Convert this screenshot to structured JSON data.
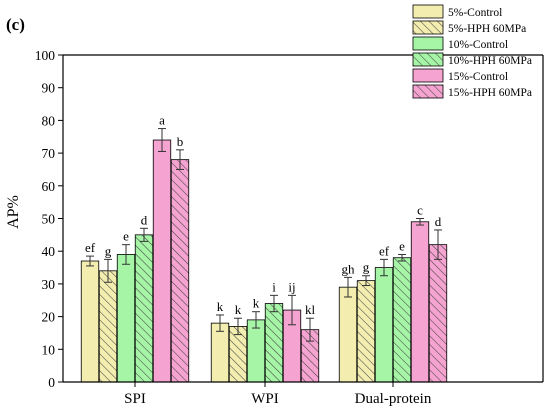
{
  "panel_label": "(c)",
  "chart_data": {
    "type": "bar",
    "title": "",
    "xlabel": "",
    "ylabel": "AP%",
    "ylim": [
      0,
      100
    ],
    "yticks": [
      0,
      10,
      20,
      30,
      40,
      50,
      60,
      70,
      80,
      90,
      100
    ],
    "categories": [
      "SPI",
      "WPI",
      "Dual-protein"
    ],
    "legend_position": "top-right",
    "series": [
      {
        "name": "5%-Control",
        "color": "#f3eeb0",
        "hatch": false,
        "values": [
          37,
          18,
          29
        ],
        "errors": [
          1.5,
          2.5,
          3
        ],
        "letters": [
          "ef",
          "k",
          "gh"
        ]
      },
      {
        "name": "5%-HPH 60MPa",
        "color": "#f3eeb0",
        "hatch": true,
        "values": [
          34,
          17,
          31
        ],
        "errors": [
          3.5,
          2.5,
          1.5
        ],
        "letters": [
          "g",
          "k",
          "g"
        ]
      },
      {
        "name": "10%-Control",
        "color": "#a6f5a6",
        "hatch": false,
        "values": [
          39,
          19,
          35
        ],
        "errors": [
          3,
          2.5,
          2.5
        ],
        "letters": [
          "e",
          "k",
          "ef"
        ]
      },
      {
        "name": "10%-HPH 60MPa",
        "color": "#a6f5a6",
        "hatch": true,
        "values": [
          45,
          24,
          38
        ],
        "errors": [
          2,
          2.5,
          1
        ],
        "letters": [
          "d",
          "i",
          "e"
        ]
      },
      {
        "name": "15%-Control",
        "color": "#f5a3d0",
        "hatch": false,
        "values": [
          74,
          22,
          49
        ],
        "errors": [
          3.5,
          4.5,
          1
        ],
        "letters": [
          "a",
          "ij",
          "c"
        ]
      },
      {
        "name": "15%-HPH 60MPa",
        "color": "#f5a3d0",
        "hatch": true,
        "values": [
          68,
          16,
          42
        ],
        "errors": [
          3,
          3.5,
          4.5
        ],
        "letters": [
          "b",
          "kl",
          "d"
        ]
      }
    ]
  }
}
